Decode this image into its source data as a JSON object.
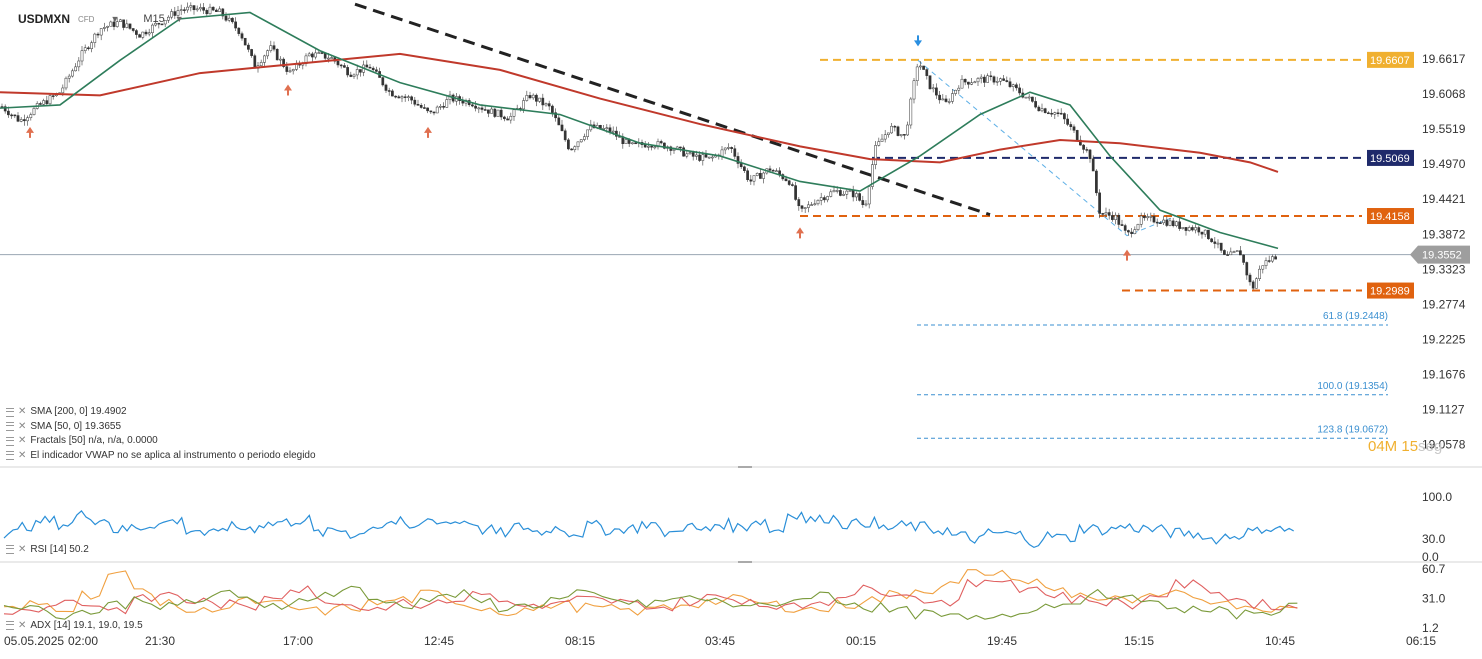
{
  "header": {
    "symbol": "USDMXN",
    "instrument_type": "CFD",
    "timeframe": "M15"
  },
  "chart_data": {
    "type": "line",
    "price_axis": {
      "ticks": [
        "19.6617",
        "19.6068",
        "19.5519",
        "19.4970",
        "19.4421",
        "19.3872",
        "19.3323",
        "19.2774",
        "19.2225",
        "19.1676",
        "19.1127",
        "19.0578"
      ],
      "range": [
        19.03,
        19.695
      ]
    },
    "time_axis": {
      "ticks": [
        "05.05.2025",
        "02:00",
        "21:30",
        "17:00",
        "12:45",
        "08:15",
        "03:45",
        "00:15",
        "19:45",
        "15:15",
        "10:45",
        "06:15"
      ]
    },
    "last_price": "19.3552",
    "price_series_approx": [
      {
        "x": 0,
        "y": 19.59
      },
      {
        "x": 20,
        "y": 19.565
      },
      {
        "x": 40,
        "y": 19.59
      },
      {
        "x": 60,
        "y": 19.61
      },
      {
        "x": 80,
        "y": 19.665
      },
      {
        "x": 100,
        "y": 19.71
      },
      {
        "x": 120,
        "y": 19.72
      },
      {
        "x": 140,
        "y": 19.7
      },
      {
        "x": 160,
        "y": 19.72
      },
      {
        "x": 180,
        "y": 19.74
      },
      {
        "x": 200,
        "y": 19.74
      },
      {
        "x": 220,
        "y": 19.735
      },
      {
        "x": 240,
        "y": 19.705
      },
      {
        "x": 255,
        "y": 19.65
      },
      {
        "x": 270,
        "y": 19.68
      },
      {
        "x": 290,
        "y": 19.64
      },
      {
        "x": 310,
        "y": 19.67
      },
      {
        "x": 330,
        "y": 19.665
      },
      {
        "x": 350,
        "y": 19.64
      },
      {
        "x": 370,
        "y": 19.65
      },
      {
        "x": 390,
        "y": 19.61
      },
      {
        "x": 410,
        "y": 19.6
      },
      {
        "x": 430,
        "y": 19.575
      },
      {
        "x": 450,
        "y": 19.6
      },
      {
        "x": 470,
        "y": 19.595
      },
      {
        "x": 490,
        "y": 19.58
      },
      {
        "x": 510,
        "y": 19.57
      },
      {
        "x": 530,
        "y": 19.605
      },
      {
        "x": 550,
        "y": 19.585
      },
      {
        "x": 570,
        "y": 19.52
      },
      {
        "x": 590,
        "y": 19.555
      },
      {
        "x": 610,
        "y": 19.55
      },
      {
        "x": 630,
        "y": 19.525
      },
      {
        "x": 650,
        "y": 19.53
      },
      {
        "x": 670,
        "y": 19.525
      },
      {
        "x": 690,
        "y": 19.51
      },
      {
        "x": 710,
        "y": 19.505
      },
      {
        "x": 730,
        "y": 19.525
      },
      {
        "x": 750,
        "y": 19.47
      },
      {
        "x": 770,
        "y": 19.49
      },
      {
        "x": 790,
        "y": 19.47
      },
      {
        "x": 800,
        "y": 19.42
      },
      {
        "x": 815,
        "y": 19.44
      },
      {
        "x": 835,
        "y": 19.455
      },
      {
        "x": 855,
        "y": 19.45
      },
      {
        "x": 865,
        "y": 19.43
      },
      {
        "x": 875,
        "y": 19.52
      },
      {
        "x": 890,
        "y": 19.555
      },
      {
        "x": 905,
        "y": 19.54
      },
      {
        "x": 918,
        "y": 19.66
      },
      {
        "x": 930,
        "y": 19.62
      },
      {
        "x": 945,
        "y": 19.59
      },
      {
        "x": 960,
        "y": 19.625
      },
      {
        "x": 980,
        "y": 19.63
      },
      {
        "x": 1000,
        "y": 19.63
      },
      {
        "x": 1020,
        "y": 19.61
      },
      {
        "x": 1040,
        "y": 19.585
      },
      {
        "x": 1060,
        "y": 19.575
      },
      {
        "x": 1075,
        "y": 19.545
      },
      {
        "x": 1090,
        "y": 19.51
      },
      {
        "x": 1100,
        "y": 19.42
      },
      {
        "x": 1115,
        "y": 19.415
      },
      {
        "x": 1127,
        "y": 19.385
      },
      {
        "x": 1140,
        "y": 19.41
      },
      {
        "x": 1160,
        "y": 19.41
      },
      {
        "x": 1180,
        "y": 19.4
      },
      {
        "x": 1200,
        "y": 19.395
      },
      {
        "x": 1215,
        "y": 19.375
      },
      {
        "x": 1225,
        "y": 19.35
      },
      {
        "x": 1240,
        "y": 19.36
      },
      {
        "x": 1252,
        "y": 19.3
      },
      {
        "x": 1262,
        "y": 19.34
      },
      {
        "x": 1278,
        "y": 19.355
      }
    ],
    "sma200_approx": [
      {
        "x": 0,
        "y": 19.61
      },
      {
        "x": 100,
        "y": 19.605
      },
      {
        "x": 200,
        "y": 19.64
      },
      {
        "x": 300,
        "y": 19.655
      },
      {
        "x": 400,
        "y": 19.67
      },
      {
        "x": 500,
        "y": 19.645
      },
      {
        "x": 600,
        "y": 19.6
      },
      {
        "x": 700,
        "y": 19.56
      },
      {
        "x": 800,
        "y": 19.525
      },
      {
        "x": 870,
        "y": 19.505
      },
      {
        "x": 940,
        "y": 19.5
      },
      {
        "x": 1000,
        "y": 19.52
      },
      {
        "x": 1060,
        "y": 19.535
      },
      {
        "x": 1120,
        "y": 19.53
      },
      {
        "x": 1200,
        "y": 19.515
      },
      {
        "x": 1250,
        "y": 19.5
      },
      {
        "x": 1278,
        "y": 19.485
      }
    ],
    "sma50_approx": [
      {
        "x": 0,
        "y": 19.585
      },
      {
        "x": 60,
        "y": 19.59
      },
      {
        "x": 120,
        "y": 19.66
      },
      {
        "x": 180,
        "y": 19.725
      },
      {
        "x": 250,
        "y": 19.735
      },
      {
        "x": 320,
        "y": 19.675
      },
      {
        "x": 400,
        "y": 19.625
      },
      {
        "x": 480,
        "y": 19.59
      },
      {
        "x": 560,
        "y": 19.575
      },
      {
        "x": 640,
        "y": 19.53
      },
      {
        "x": 720,
        "y": 19.51
      },
      {
        "x": 800,
        "y": 19.47
      },
      {
        "x": 860,
        "y": 19.455
      },
      {
        "x": 920,
        "y": 19.51
      },
      {
        "x": 980,
        "y": 19.575
      },
      {
        "x": 1030,
        "y": 19.61
      },
      {
        "x": 1070,
        "y": 19.59
      },
      {
        "x": 1110,
        "y": 19.51
      },
      {
        "x": 1160,
        "y": 19.425
      },
      {
        "x": 1220,
        "y": 19.39
      },
      {
        "x": 1278,
        "y": 19.365
      }
    ],
    "levels": [
      {
        "label": "19.6607",
        "value": 19.6607,
        "color": "#f0b030",
        "x_start": 820
      },
      {
        "label": "19.5069",
        "value": 19.5069,
        "color": "#1f2a6b",
        "x_start": 872
      },
      {
        "label": "19.4158",
        "value": 19.4158,
        "color": "#e0620f",
        "x_start": 800
      },
      {
        "label": "19.2989",
        "value": 19.2989,
        "color": "#e0620f",
        "x_start": 1122
      }
    ],
    "fibonacci": [
      {
        "label": "61.8 (19.2448)",
        "value": 19.2448
      },
      {
        "label": "100.0 (19.1354)",
        "value": 19.1354
      },
      {
        "label": "123.8 (19.0672)",
        "value": 19.0672
      }
    ],
    "trendline": {
      "from": {
        "x": 355,
        "y": 19.748
      },
      "to": {
        "x": 990,
        "y": 19.418
      }
    },
    "swing_line": {
      "from": {
        "x": 918,
        "y": 19.66
      },
      "to": {
        "x": 1127,
        "y": 19.385
      },
      "to2": {
        "x": 1175,
        "y": 19.415
      }
    },
    "fractal_up_x": [
      30,
      288,
      428,
      800,
      1127
    ],
    "fractal_down_x": [
      918
    ],
    "rsi": {
      "ticks": [
        "100.0",
        "30.0",
        "0.0"
      ],
      "range": [
        0,
        100
      ],
      "values_approx": [
        40,
        52,
        60,
        55,
        70,
        62,
        45,
        50,
        55,
        60,
        45,
        38,
        50,
        48,
        55,
        58,
        62,
        40,
        45,
        38,
        52,
        58,
        48,
        62,
        58,
        60,
        45,
        40,
        50,
        42,
        48,
        40,
        52,
        45,
        48,
        55,
        40,
        50,
        45,
        55,
        50,
        60,
        45,
        72,
        62,
        65,
        55,
        58,
        48,
        52,
        50,
        45,
        35,
        30,
        40,
        38,
        25,
        35,
        32,
        48,
        45,
        50,
        48,
        45,
        40,
        38,
        30,
        35,
        42,
        48,
        46
      ]
    },
    "adx": {
      "ticks": [
        "60.7",
        "31.0",
        "1.2"
      ],
      "range": [
        1.2,
        60.7
      ],
      "series": [
        {
          "color": "#f0a040",
          "values": [
            20,
            25,
            22,
            35,
            55,
            40,
            25,
            18,
            22,
            28,
            25,
            20,
            18,
            22,
            26,
            30,
            35,
            28,
            22,
            18,
            20,
            25,
            22,
            20,
            18,
            22,
            26,
            28,
            30,
            25,
            22,
            20,
            25,
            30,
            35,
            40,
            45,
            58,
            55,
            48,
            40,
            35,
            30,
            28,
            32,
            35,
            30,
            25,
            22,
            20
          ]
        },
        {
          "color": "#e06060",
          "values": [
            18,
            22,
            28,
            25,
            20,
            30,
            35,
            28,
            25,
            22,
            35,
            40,
            30,
            25,
            22,
            28,
            25,
            30,
            35,
            28,
            22,
            25,
            30,
            28,
            25,
            22,
            28,
            32,
            30,
            25,
            22,
            28,
            35,
            40,
            38,
            30,
            28,
            45,
            50,
            42,
            35,
            30,
            28,
            25,
            35,
            45,
            40,
            30,
            25,
            22
          ]
        },
        {
          "color": "#7a9a3a",
          "values": [
            25,
            20,
            15,
            18,
            25,
            30,
            22,
            28,
            35,
            30,
            25,
            28,
            35,
            40,
            30,
            25,
            30,
            35,
            28,
            22,
            25,
            30,
            35,
            30,
            25,
            28,
            32,
            28,
            25,
            22,
            30,
            35,
            28,
            22,
            18,
            15,
            12,
            10,
            15,
            20,
            25,
            30,
            35,
            30,
            25,
            20,
            18,
            15,
            18,
            22
          ]
        }
      ]
    }
  },
  "indicators": [
    {
      "text": "SMA [200, 0] 19.4902"
    },
    {
      "text": "SMA [50, 0] 19.3655"
    },
    {
      "text": "Fractals [50] n/a, n/a, 0.0000"
    },
    {
      "text": "El indicador VWAP no se aplica al instrumento o periodo elegido"
    }
  ],
  "rsi_label": "RSI [14] 50.2",
  "adx_label": "ADX [14] 19.1, 19.0, 19.5",
  "watermark": {
    "time": "04M 15",
    "unit": "seg"
  },
  "colors": {
    "candle_up": "#26a69a",
    "candle_down": "#ef5350",
    "sma50": "#2e7d5b",
    "sma200": "#c0392b",
    "trendline": "#222222",
    "last_price_tag": "#9e9e9e",
    "fib": "#3a8fd0"
  }
}
